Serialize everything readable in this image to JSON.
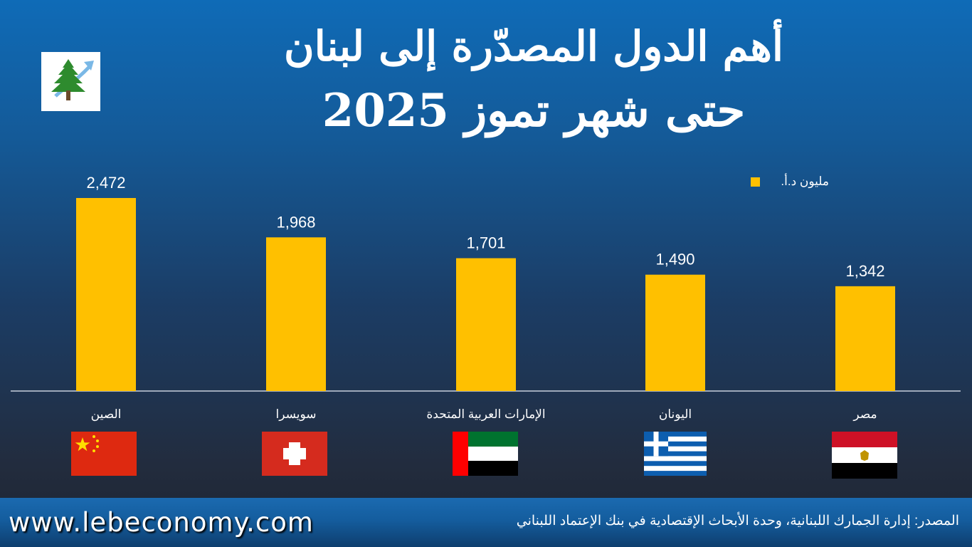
{
  "title_line1": "أهم الدول المصدّرة إلى لبنان",
  "title_line2": "حتى شهر تموز 2025",
  "legend_label": "مليون د.أ.",
  "chart_data": {
    "type": "bar",
    "categories": [
      "الصين",
      "سويسرا",
      "الإمارات العربية المتحدة",
      "اليونان",
      "مصر"
    ],
    "values": [
      2472,
      1968,
      1701,
      1490,
      1342
    ],
    "value_labels": [
      "2,472",
      "1,968",
      "1,701",
      "1,490",
      "1,342"
    ],
    "series": [
      {
        "name": "مليون د.أ.",
        "values": [
          2472,
          1968,
          1701,
          1490,
          1342
        ]
      }
    ],
    "ylim": [
      0,
      2472
    ],
    "legend": "top-right",
    "grid": false,
    "bar_color": "#FFC000"
  },
  "flags": [
    "china-flag-icon",
    "switzerland-flag-icon",
    "uae-flag-icon",
    "greece-flag-icon",
    "egypt-flag-icon"
  ],
  "logo_icon": "cedar-tree-logo-icon",
  "footer": {
    "website": "www.lebeconomy.com",
    "source": "المصدر: إدارة الجمارك اللبنانية، وحدة الأبحاث الإقتصادية في بنك الإعتماد اللبناني"
  },
  "colors": {
    "background_top": "#0F6BB7",
    "background_bottom": "#1E2430",
    "bar": "#FFC000",
    "footer": "#145D9E"
  }
}
